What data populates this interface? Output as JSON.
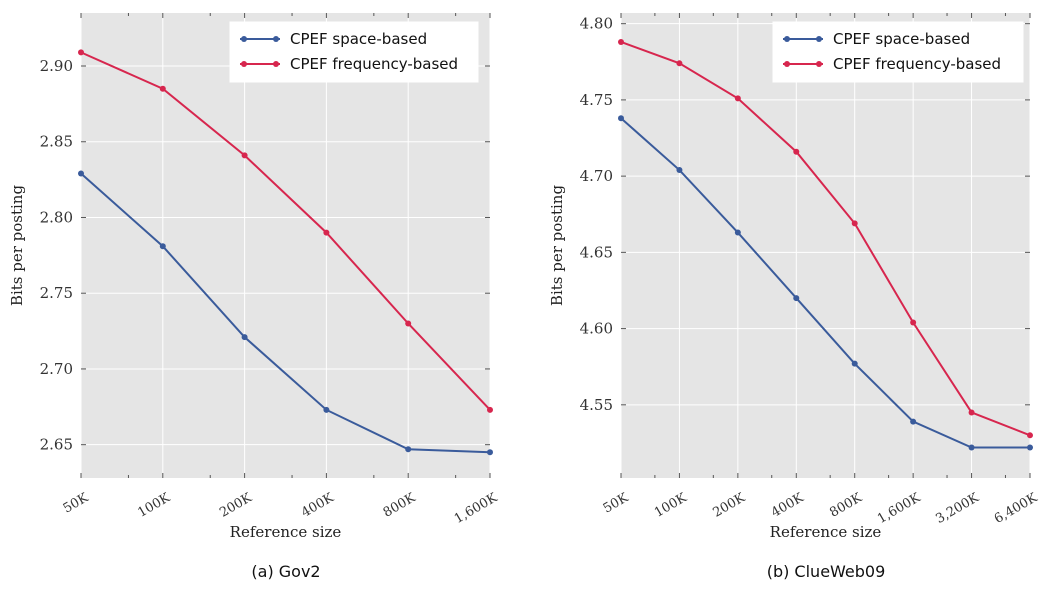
{
  "chart_data": [
    {
      "type": "line",
      "caption": "(a) Gov2",
      "xlabel": "Reference size",
      "ylabel": "Bits per posting",
      "categories": [
        "50K",
        "100K",
        "200K",
        "400K",
        "800K",
        "1,600K"
      ],
      "ylim": [
        2.628,
        2.935
      ],
      "yticks": [
        "2.65",
        "2.70",
        "2.75",
        "2.80",
        "2.85",
        "2.90"
      ],
      "grid": true,
      "legend": "top-right",
      "series": [
        {
          "name": "CPEF space-based",
          "color": "#3a5b9b",
          "values": [
            2.829,
            2.781,
            2.721,
            2.673,
            2.647,
            2.645
          ]
        },
        {
          "name": "CPEF frequency-based",
          "color": "#d7264e",
          "values": [
            2.909,
            2.885,
            2.841,
            2.79,
            2.73,
            2.673
          ]
        }
      ]
    },
    {
      "type": "line",
      "caption": "(b) ClueWeb09",
      "xlabel": "Reference size",
      "ylabel": "Bits per posting",
      "categories": [
        "50K",
        "100K",
        "200K",
        "400K",
        "800K",
        "1,600K",
        "3,200K",
        "6,400K"
      ],
      "ylim": [
        4.502,
        4.807
      ],
      "yticks": [
        "4.55",
        "4.60",
        "4.65",
        "4.70",
        "4.75",
        "4.80"
      ],
      "grid": true,
      "legend": "top-right",
      "series": [
        {
          "name": "CPEF space-based",
          "color": "#3a5b9b",
          "values": [
            4.738,
            4.704,
            4.663,
            4.62,
            4.577,
            4.539,
            4.522,
            4.522
          ]
        },
        {
          "name": "CPEF frequency-based",
          "color": "#d7264e",
          "values": [
            4.788,
            4.774,
            4.751,
            4.716,
            4.669,
            4.604,
            4.545,
            4.53
          ]
        }
      ]
    }
  ]
}
